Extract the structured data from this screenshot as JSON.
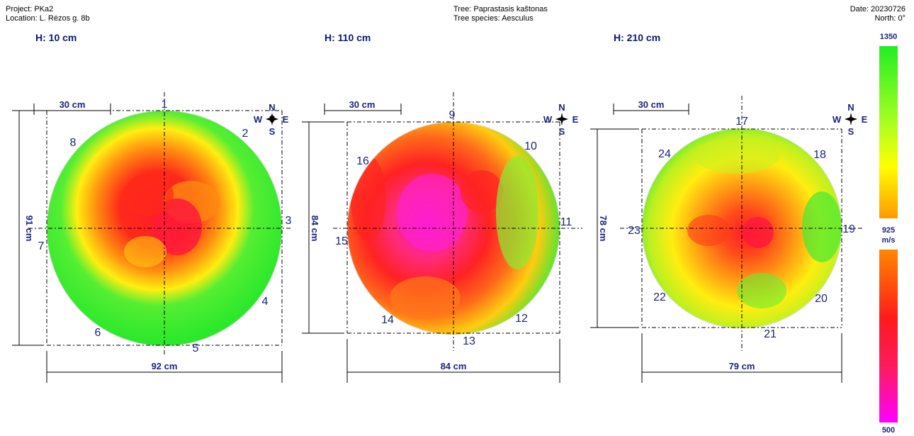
{
  "header": {
    "project": "Project: PKa2",
    "location": "Location: L. Rėzos g. 8b",
    "tree": "Tree: Paprastasis kaštonas",
    "species": "Tree species: Aesculus",
    "date": "Date: 20230726",
    "north": "North: 0°"
  },
  "sections": [
    {
      "height_label": "H: 10 cm",
      "scale_label": "30 cm",
      "width_label": "92 cm",
      "depth_label": "91 cm",
      "points": [
        "1",
        "2",
        "3",
        "4",
        "5",
        "6",
        "7",
        "8"
      ]
    },
    {
      "height_label": "H: 110 cm",
      "scale_label": "30 cm",
      "width_label": "84 cm",
      "depth_label": "84 cm",
      "points": [
        "9",
        "10",
        "11",
        "12",
        "13",
        "14",
        "15",
        "16"
      ]
    },
    {
      "height_label": "H: 210 cm",
      "scale_label": "30 cm",
      "width_label": "79 cm",
      "depth_label": "78 cm",
      "points": [
        "17",
        "18",
        "19",
        "20",
        "21",
        "22",
        "23",
        "24"
      ]
    }
  ],
  "compass": {
    "n": "N",
    "w": "W",
    "e": "E",
    "s": "S"
  },
  "legend": {
    "max": "1350",
    "mid": "925",
    "unit": "m/s",
    "min": "500",
    "colors": {
      "high": "#22ee22",
      "yellow": "#ffff00",
      "orange": "#ff8c00",
      "red": "#ff1a1a",
      "magenta": "#ff00ff"
    }
  }
}
